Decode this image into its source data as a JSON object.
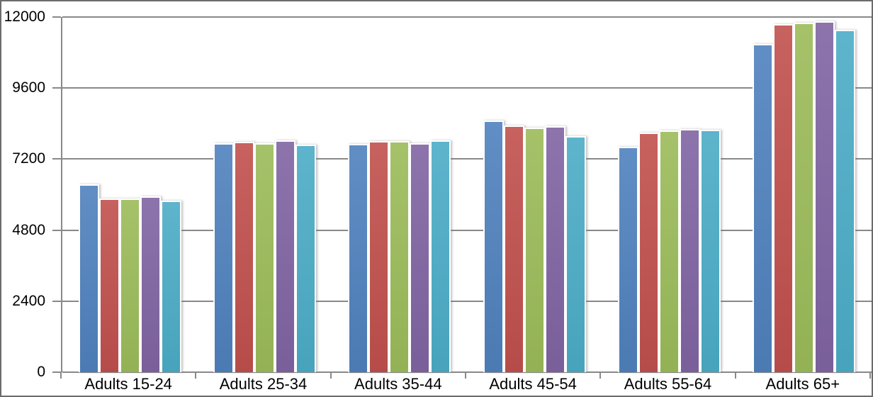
{
  "chart_data": {
    "type": "bar",
    "title": "",
    "xlabel": "",
    "ylabel": "",
    "categories": [
      "Adults 15-24",
      "Adults 25-34",
      "Adults 35-44",
      "Adults 45-54",
      "Adults 55-64",
      "Adults 65+"
    ],
    "series": [
      {
        "name": "series-1-blue",
        "color": "#4F81BD",
        "values": [
          6290,
          7680,
          7660,
          8450,
          7560,
          11040
        ]
      },
      {
        "name": "series-2-red",
        "color": "#C0504D",
        "values": [
          5830,
          7730,
          7750,
          8280,
          8040,
          11710
        ]
      },
      {
        "name": "series-3-green",
        "color": "#9BBB59",
        "values": [
          5810,
          7680,
          7750,
          8210,
          8110,
          11760
        ]
      },
      {
        "name": "series-4-purple",
        "color": "#8064A2",
        "values": [
          5900,
          7780,
          7680,
          8260,
          8160,
          11810
        ]
      },
      {
        "name": "series-5-teal",
        "color": "#4BACC6",
        "values": [
          5740,
          7630,
          7780,
          7940,
          8140,
          11520
        ]
      }
    ],
    "y_ticks": [
      "0",
      "2400",
      "4800",
      "7200",
      "9600",
      "12000"
    ],
    "ylim": [
      0,
      12000
    ],
    "grid": true,
    "legend_position": "none"
  },
  "colors": {
    "gridline": "#898989",
    "axis": "#898989",
    "label_text": "#000000",
    "background": "#FFFFFF",
    "frame_border": "#6B6B6B"
  }
}
